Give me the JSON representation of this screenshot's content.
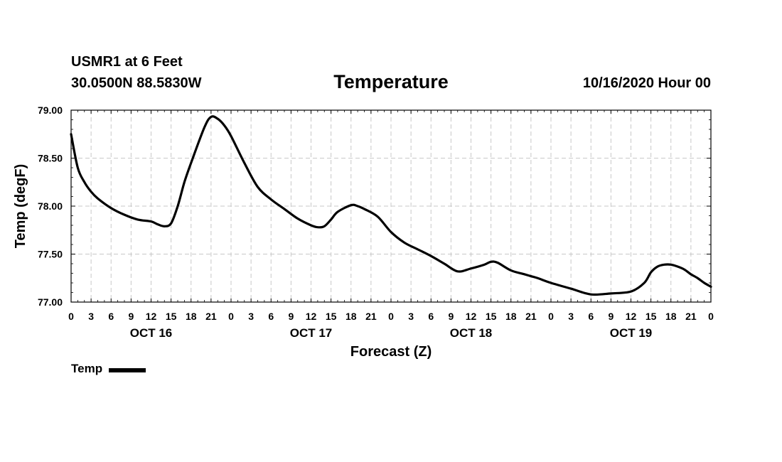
{
  "header": {
    "station": "USMR1 at 6 Feet",
    "coords": "30.0500N 88.5830W",
    "title": "Temperature",
    "timestamp": "10/16/2020 Hour 00"
  },
  "legend": {
    "label": "Temp"
  },
  "chart_data": {
    "type": "line",
    "title": "Temperature",
    "xlabel": "Forecast (Z)",
    "ylabel": "Temp (degF)",
    "grid": true,
    "legend_position": "bottom-left",
    "x_unit": "hours since 10/16/2020 00Z",
    "xlim": [
      0,
      96
    ],
    "ylim": [
      77.0,
      79.0
    ],
    "y_ticks": [
      77.0,
      77.5,
      78.0,
      78.5,
      79.0
    ],
    "y_tick_labels": [
      "77.00",
      "77.50",
      "78.00",
      "78.50",
      "79.00"
    ],
    "x_ticks": [
      0,
      3,
      6,
      9,
      12,
      15,
      18,
      21,
      24,
      27,
      30,
      33,
      36,
      39,
      42,
      45,
      48,
      51,
      54,
      57,
      60,
      63,
      66,
      69,
      72,
      75,
      78,
      81,
      84,
      87,
      90,
      93,
      96
    ],
    "x_tick_labels": [
      "0",
      "3",
      "6",
      "9",
      "12",
      "15",
      "18",
      "21",
      "0",
      "3",
      "6",
      "9",
      "12",
      "15",
      "18",
      "21",
      "0",
      "3",
      "6",
      "9",
      "12",
      "15",
      "18",
      "21",
      "0",
      "3",
      "6",
      "9",
      "12",
      "15",
      "18",
      "21",
      "0"
    ],
    "day_labels": [
      {
        "label": "OCT 16",
        "x": 12
      },
      {
        "label": "OCT 17",
        "x": 36
      },
      {
        "label": "OCT 18",
        "x": 60
      },
      {
        "label": "OCT 19",
        "x": 84
      }
    ],
    "series": [
      {
        "name": "Temp",
        "color": "#000000",
        "x": [
          0,
          1,
          2,
          3,
          4,
          6,
          8,
          10,
          12,
          13,
          14,
          15,
          16,
          17,
          18,
          20,
          21,
          22,
          23,
          24,
          26,
          28,
          30,
          32,
          34,
          36,
          37,
          38,
          39,
          40,
          42,
          43,
          44,
          46,
          48,
          50,
          52,
          54,
          56,
          58,
          60,
          62,
          63,
          64,
          66,
          68,
          69,
          70,
          72,
          75,
          78,
          81,
          84,
          86,
          87,
          88,
          89,
          90,
          91,
          92,
          93,
          94,
          95,
          96
        ],
        "values": [
          78.75,
          78.4,
          78.25,
          78.15,
          78.08,
          77.98,
          77.91,
          77.86,
          77.84,
          77.81,
          77.79,
          77.82,
          78.0,
          78.25,
          78.45,
          78.82,
          78.93,
          78.91,
          78.84,
          78.73,
          78.45,
          78.2,
          78.07,
          77.97,
          77.87,
          77.8,
          77.78,
          77.79,
          77.86,
          77.94,
          78.01,
          78.0,
          77.97,
          77.89,
          77.73,
          77.62,
          77.55,
          77.48,
          77.4,
          77.32,
          77.35,
          77.39,
          77.42,
          77.41,
          77.33,
          77.29,
          77.27,
          77.25,
          77.2,
          77.14,
          77.08,
          77.09,
          77.11,
          77.2,
          77.31,
          77.37,
          77.39,
          77.39,
          77.37,
          77.34,
          77.29,
          77.25,
          77.2,
          77.16
        ]
      }
    ]
  }
}
